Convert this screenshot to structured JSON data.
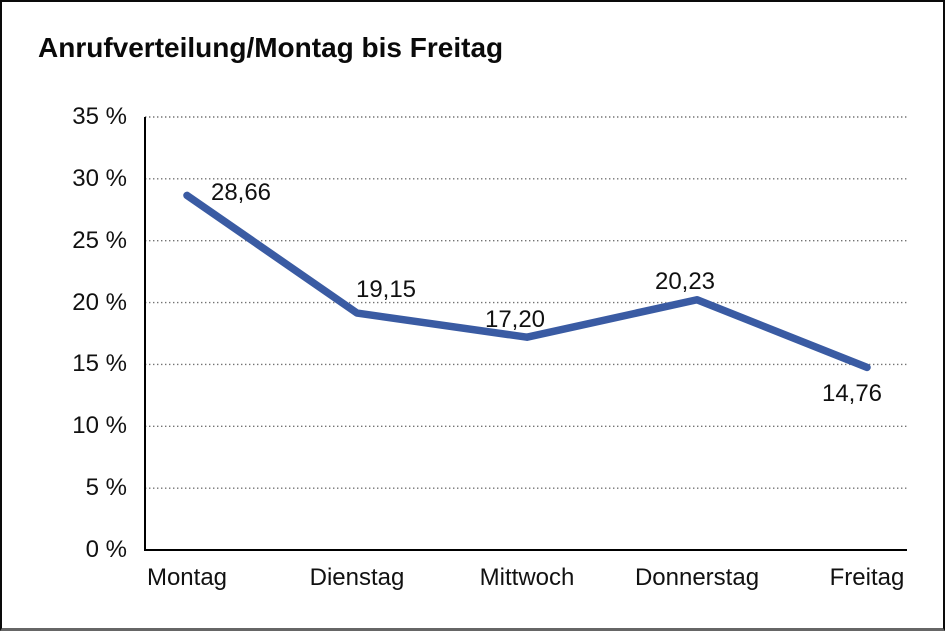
{
  "frame": {
    "background": "#ffffff",
    "border_color": "#0a0a0a",
    "bottom_edge_color": "#666666"
  },
  "chart_data": {
    "type": "line",
    "title": "Anrufverteilung/Montag bis Freitag",
    "categories": [
      "Montag",
      "Dienstag",
      "Mittwoch",
      "Donnerstag",
      "Freitag"
    ],
    "series": [
      {
        "name": "Anrufverteilung",
        "values": [
          28.66,
          19.15,
          17.2,
          20.23,
          14.76
        ],
        "color": "#3A5BA3"
      }
    ],
    "point_labels": [
      "28,66",
      "19,15",
      "17,20",
      "20,23",
      "14,76"
    ],
    "y_ticks": [
      "35 %",
      "30 %",
      "25 %",
      "20 %",
      "15 %",
      "10 %",
      "5 %",
      "0 %"
    ],
    "ylim": [
      0,
      35
    ],
    "y_tick_step": 5,
    "xlabel": "",
    "ylabel": "",
    "grid": "horizontal-dotted",
    "gridline_color": "#737373",
    "axis_color": "#000000",
    "text_color": "#111111",
    "legend": "none"
  }
}
